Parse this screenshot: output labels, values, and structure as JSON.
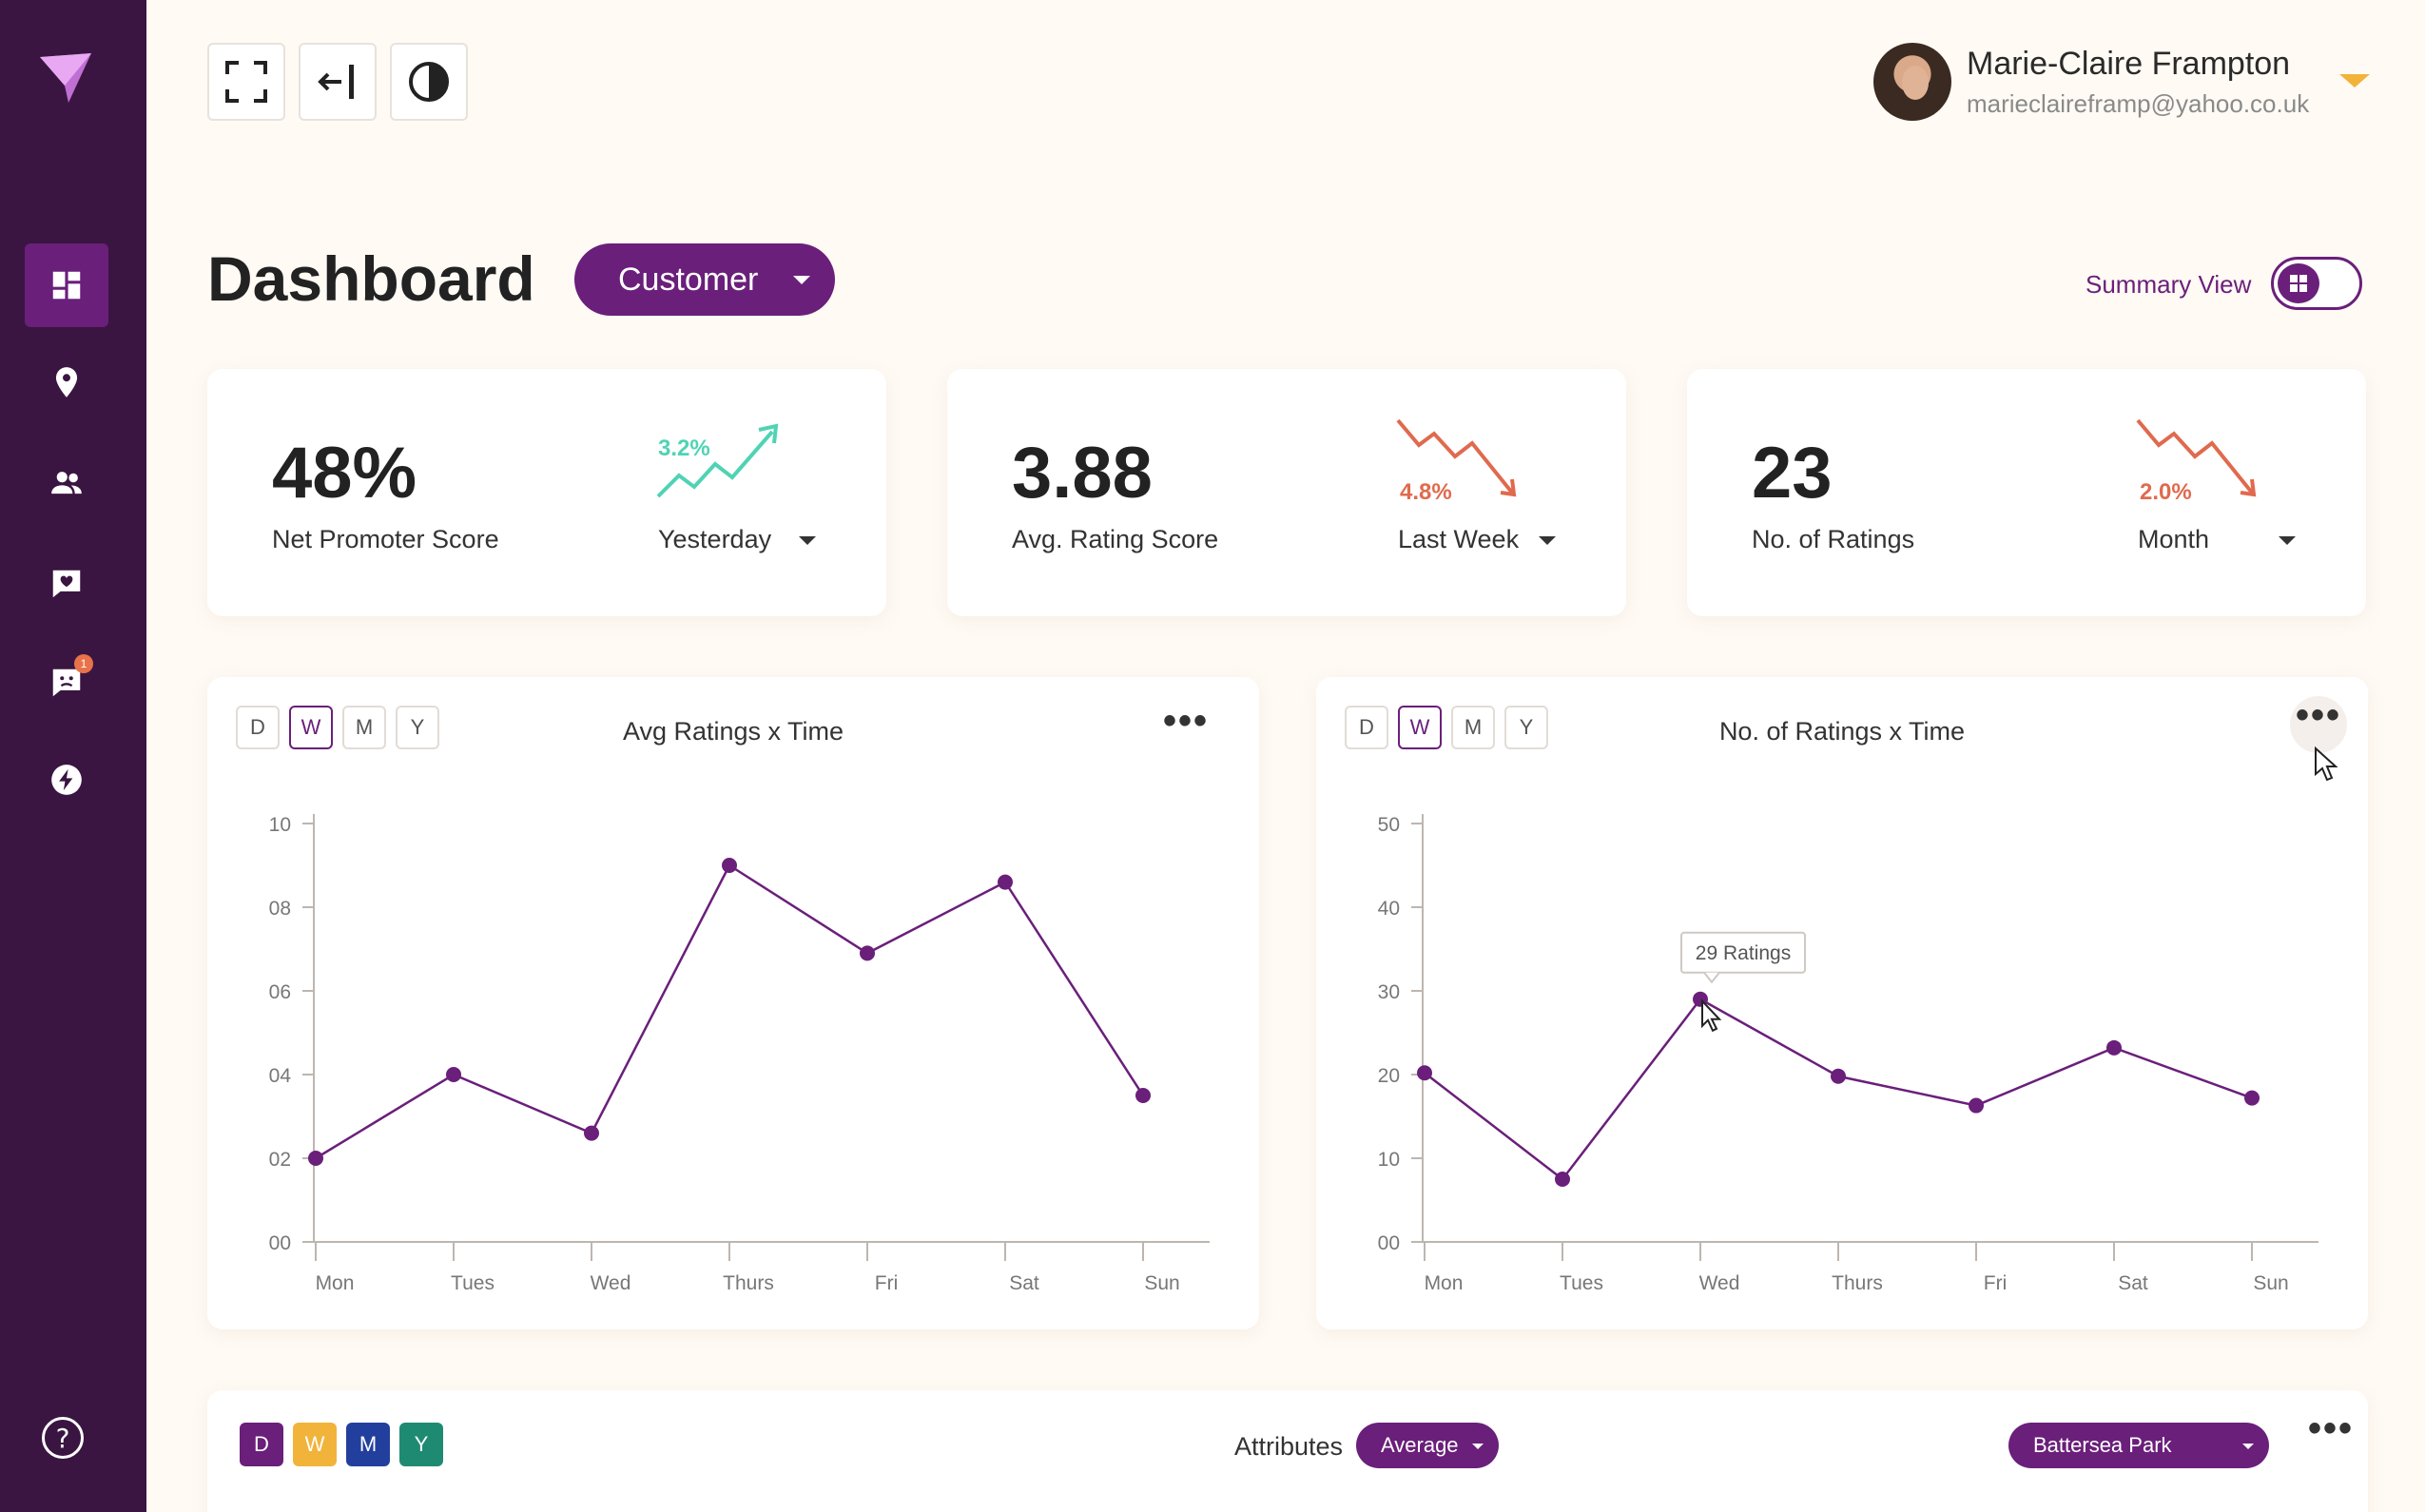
{
  "sidebar": {
    "logo": "brand-logo",
    "items": [
      {
        "icon": "dashboard-icon",
        "active": true
      },
      {
        "icon": "location-pin-icon",
        "active": false
      },
      {
        "icon": "users-icon",
        "active": false
      },
      {
        "icon": "heart-chat-icon",
        "active": false
      },
      {
        "icon": "feedback-chat-icon",
        "active": false,
        "badge": "1"
      },
      {
        "icon": "lightning-icon",
        "active": false
      }
    ],
    "help": "?"
  },
  "toolbar": {
    "icons": [
      "fullscreen-icon",
      "collapse-sidebar-icon",
      "contrast-icon"
    ]
  },
  "user": {
    "name": "Marie-Claire Frampton",
    "email": "marieclaireframp@yahoo.co.uk"
  },
  "header": {
    "title": "Dashboard",
    "segment": "Customer",
    "summary_label": "Summary View"
  },
  "kpis": [
    {
      "value": "48%",
      "label": "Net Promoter Score",
      "delta": "3.2%",
      "trend": "up",
      "period": "Yesterday"
    },
    {
      "value": "3.88",
      "label": "Avg. Rating Score",
      "delta": "4.8%",
      "trend": "down",
      "period": "Last Week"
    },
    {
      "value": "23",
      "label": "No. of Ratings",
      "delta": "2.0%",
      "trend": "down",
      "period": "Month"
    }
  ],
  "colors": {
    "primary": "#6a1f7a",
    "sidebar": "#3a1541",
    "up": "#4fd3b4",
    "down": "#e06a4e"
  },
  "range_buttons": [
    "D",
    "W",
    "M",
    "Y"
  ],
  "chart_data": [
    {
      "type": "line",
      "title": "Avg Ratings x Time",
      "categories": [
        "Mon",
        "Tues",
        "Wed",
        "Thurs",
        "Fri",
        "Sat",
        "Sun"
      ],
      "values": [
        2.0,
        4.0,
        2.6,
        9.0,
        6.9,
        8.6,
        3.5
      ],
      "ylim": [
        0,
        10
      ],
      "yticks": [
        "00",
        "02",
        "04",
        "06",
        "08",
        "10"
      ],
      "ytick_values": [
        0,
        2,
        4,
        6,
        8,
        10
      ],
      "active_range": "W"
    },
    {
      "type": "line",
      "title": "No. of Ratings x Time",
      "categories": [
        "Mon",
        "Tues",
        "Wed",
        "Thurs",
        "Fri",
        "Sat",
        "Sun"
      ],
      "values": [
        20.2,
        7.5,
        29,
        19.8,
        16.3,
        23.2,
        17.2
      ],
      "ylim": [
        0,
        50
      ],
      "yticks": [
        "00",
        "10",
        "20",
        "30",
        "40",
        "50"
      ],
      "ytick_values": [
        0,
        10,
        20,
        30,
        40,
        50
      ],
      "active_range": "W",
      "tooltip": {
        "index": 2,
        "text": "29 Ratings"
      }
    }
  ],
  "bottom": {
    "color_buttons": [
      {
        "label": "D",
        "color": "#6a1f7a"
      },
      {
        "label": "W",
        "color": "#f2b33a"
      },
      {
        "label": "M",
        "color": "#233f9e"
      },
      {
        "label": "Y",
        "color": "#1f8a72"
      }
    ],
    "attributes_label": "Attributes",
    "aggregate": "Average",
    "location": "Battersea Park"
  }
}
